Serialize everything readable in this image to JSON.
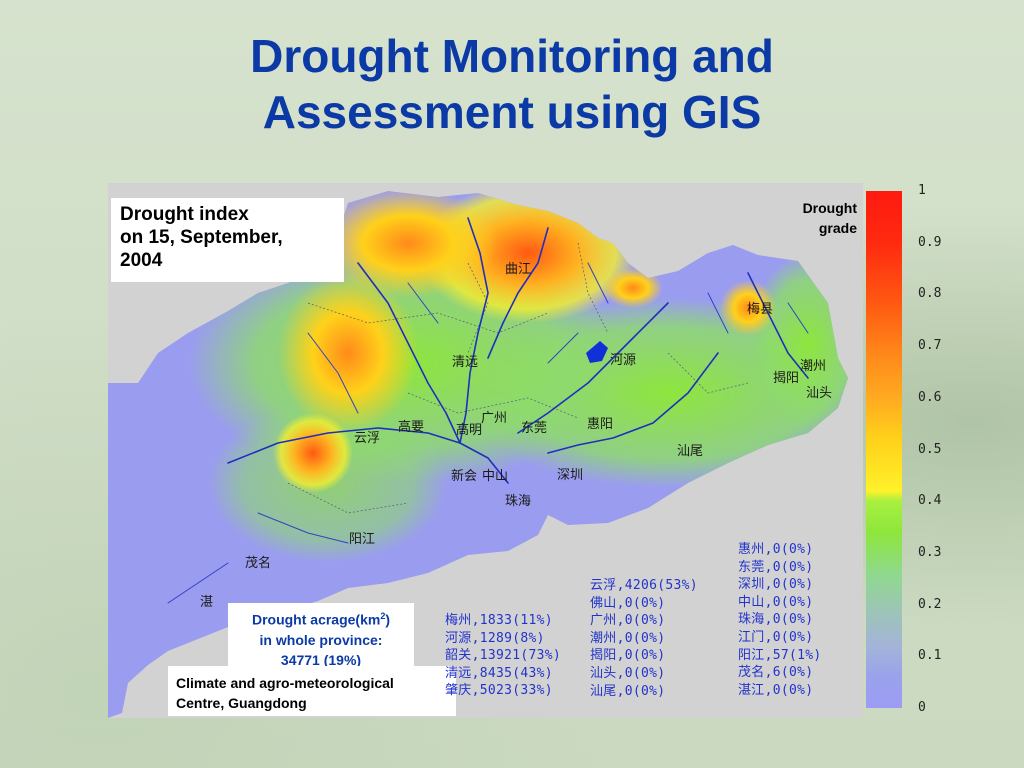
{
  "slide": {
    "title_line1": "Drought Monitoring and",
    "title_line2": "Assessment using GIS"
  },
  "map": {
    "index_title": [
      "Drought index",
      "on 15, September,",
      "2004"
    ],
    "cities": [
      {
        "id": "shaoguan",
        "name": "曲江"
      },
      {
        "id": "meixian",
        "name": "梅县"
      },
      {
        "id": "qingyuan",
        "name": "清远"
      },
      {
        "id": "heyuan",
        "name": "河源"
      },
      {
        "id": "chaozhou",
        "name": "潮州"
      },
      {
        "id": "jieyang",
        "name": "揭阳"
      },
      {
        "id": "shantou",
        "name": "汕头"
      },
      {
        "id": "guangzhou",
        "name": "广州"
      },
      {
        "id": "yunfu",
        "name": "云浮"
      },
      {
        "id": "gaoyao",
        "name": "高要"
      },
      {
        "id": "gaoming",
        "name": "高明"
      },
      {
        "id": "dongguan",
        "name": "东莞"
      },
      {
        "id": "huiyang",
        "name": "惠阳"
      },
      {
        "id": "shanwei",
        "name": "汕尾"
      },
      {
        "id": "xinhui",
        "name": "新会"
      },
      {
        "id": "zhongshan",
        "name": "中山"
      },
      {
        "id": "shenzhen",
        "name": "深圳"
      },
      {
        "id": "zhuhai",
        "name": "珠海"
      },
      {
        "id": "yangjiang",
        "name": "阳江"
      },
      {
        "id": "maoming",
        "name": "茂名"
      },
      {
        "id": "zhanjiang",
        "name": "湛"
      }
    ],
    "legend": {
      "title": [
        "Drought",
        "grade"
      ],
      "ticks": [
        "1",
        "0.9",
        "0.8",
        "0.7",
        "0.6",
        "0.5",
        "0.4",
        "0.3",
        "0.2",
        "0.1",
        "0"
      ],
      "scale_min": 0,
      "scale_max": 1,
      "colors": [
        "#ff1a0f",
        "#ff8a1a",
        "#fff12a",
        "#8ee63c",
        "#9c9cf5"
      ]
    },
    "acrage": {
      "line1": "Drought acrage(km",
      "sup": "2",
      "line1_end": ")",
      "line2": "in whole province:",
      "line3": "34771 (19%)"
    },
    "credit": [
      "Climate and agro-meteorological",
      "Centre, Guangdong"
    ],
    "stats_col1": [
      "梅州,1833(11%)",
      "河源,1289(8%)",
      "韶关,13921(73%)",
      "清远,8435(43%)",
      "肇庆,5023(33%)"
    ],
    "stats_col2": [
      "云浮,4206(53%)",
      "佛山,0(0%)",
      "广州,0(0%)",
      "潮州,0(0%)",
      "揭阳,0(0%)",
      "汕头,0(0%)",
      "汕尾,0(0%)"
    ],
    "stats_col3": [
      "惠州,0(0%)",
      "东莞,0(0%)",
      "深圳,0(0%)",
      "中山,0(0%)",
      "珠海,0(0%)",
      "江门,0(0%)",
      "阳江,57(1%)",
      "茂名,6(0%)",
      "湛江,0(0%)"
    ]
  }
}
